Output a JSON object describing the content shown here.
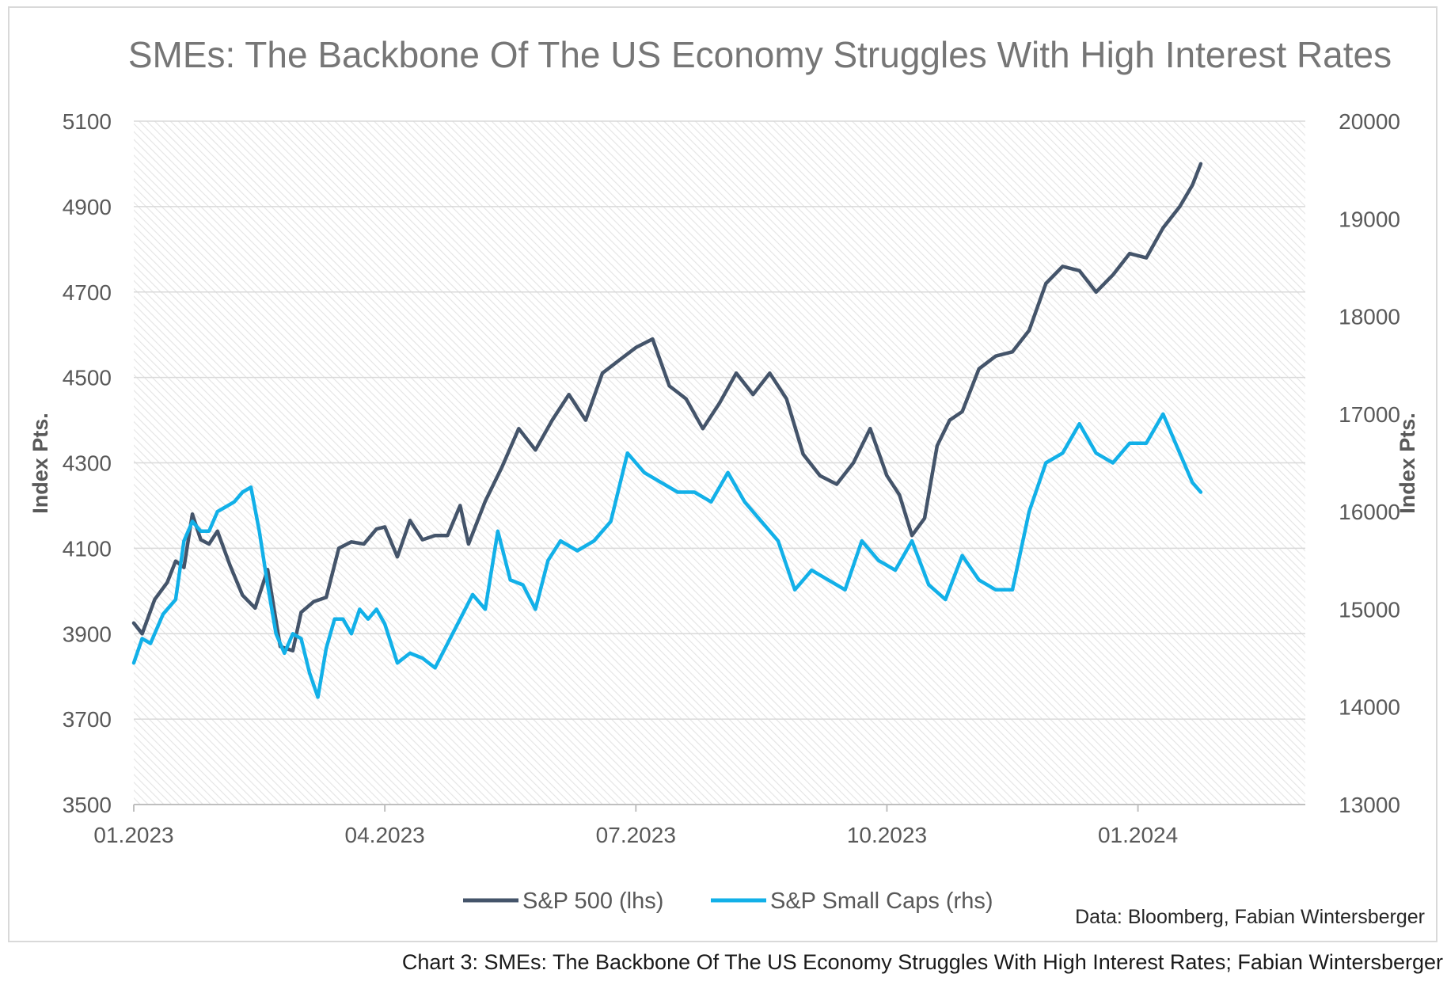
{
  "caption": "Chart 3: SMEs: The Backbone Of The US Economy Struggles With High Interest Rates; Fabian Wintersberger",
  "chart_data": {
    "type": "line",
    "title": "SMEs: The Backbone Of The US Economy Struggles With High Interest Rates",
    "ylabel_left": "Index Pts.",
    "ylabel_right": "Index Pts.",
    "source": "Data: Bloomberg, Fabian Wintersberger",
    "x_ticks": [
      "01.2023",
      "04.2023",
      "07.2023",
      "10.2023",
      "01.2024"
    ],
    "x_tick_months": [
      0,
      3,
      6,
      9,
      12
    ],
    "x_range_months": [
      0,
      14
    ],
    "y_left": {
      "min": 3500,
      "max": 5100,
      "ticks": [
        3500,
        3700,
        3900,
        4100,
        4300,
        4500,
        4700,
        4900,
        5100
      ]
    },
    "y_right": {
      "min": 13000,
      "max": 20000,
      "ticks": [
        13000,
        14000,
        15000,
        16000,
        17000,
        18000,
        19000,
        20000
      ]
    },
    "grid": true,
    "legend_position": "bottom",
    "series": [
      {
        "name": "S&P 500 (lhs)",
        "axis": "left",
        "color": "#44546a",
        "x": [
          0.0,
          0.1,
          0.25,
          0.4,
          0.5,
          0.6,
          0.7,
          0.8,
          0.9,
          1.0,
          1.15,
          1.3,
          1.45,
          1.6,
          1.75,
          1.9,
          2.0,
          2.15,
          2.3,
          2.45,
          2.6,
          2.75,
          2.9,
          3.0,
          3.15,
          3.3,
          3.45,
          3.6,
          3.75,
          3.9,
          4.0,
          4.2,
          4.4,
          4.6,
          4.8,
          5.0,
          5.2,
          5.4,
          5.6,
          5.8,
          6.0,
          6.2,
          6.4,
          6.6,
          6.8,
          7.0,
          7.2,
          7.4,
          7.6,
          7.8,
          8.0,
          8.2,
          8.4,
          8.6,
          8.8,
          9.0,
          9.15,
          9.3,
          9.45,
          9.6,
          9.75,
          9.9,
          10.1,
          10.3,
          10.5,
          10.7,
          10.9,
          11.1,
          11.3,
          11.5,
          11.7,
          11.9,
          12.1,
          12.3,
          12.5,
          12.65,
          12.75
        ],
        "values": [
          3925,
          3900,
          3980,
          4020,
          4070,
          4055,
          4180,
          4120,
          4110,
          4140,
          4060,
          3990,
          3960,
          4050,
          3870,
          3860,
          3950,
          3975,
          3985,
          4100,
          4115,
          4110,
          4145,
          4150,
          4080,
          4165,
          4120,
          4130,
          4130,
          4200,
          4110,
          4210,
          4290,
          4380,
          4330,
          4400,
          4460,
          4400,
          4510,
          4540,
          4570,
          4590,
          4480,
          4450,
          4380,
          4440,
          4510,
          4460,
          4510,
          4450,
          4320,
          4270,
          4250,
          4300,
          4380,
          4270,
          4225,
          4130,
          4170,
          4340,
          4400,
          4420,
          4520,
          4550,
          4560,
          4610,
          4720,
          4760,
          4750,
          4700,
          4740,
          4790,
          4780,
          4850,
          4900,
          4950,
          5000
        ]
      },
      {
        "name": "S&P Small Caps (rhs)",
        "axis": "right",
        "color": "#12b0e8",
        "x": [
          0.0,
          0.1,
          0.2,
          0.35,
          0.5,
          0.6,
          0.7,
          0.8,
          0.9,
          1.0,
          1.1,
          1.2,
          1.3,
          1.4,
          1.5,
          1.6,
          1.7,
          1.8,
          1.9,
          2.0,
          2.1,
          2.2,
          2.3,
          2.4,
          2.5,
          2.6,
          2.7,
          2.8,
          2.9,
          3.0,
          3.15,
          3.3,
          3.45,
          3.6,
          3.75,
          3.9,
          4.05,
          4.2,
          4.35,
          4.5,
          4.65,
          4.8,
          4.95,
          5.1,
          5.3,
          5.5,
          5.7,
          5.9,
          6.1,
          6.3,
          6.5,
          6.7,
          6.9,
          7.1,
          7.3,
          7.5,
          7.7,
          7.9,
          8.1,
          8.3,
          8.5,
          8.7,
          8.9,
          9.1,
          9.3,
          9.5,
          9.7,
          9.9,
          10.1,
          10.3,
          10.5,
          10.7,
          10.9,
          11.1,
          11.3,
          11.5,
          11.7,
          11.9,
          12.1,
          12.3,
          12.5,
          12.65,
          12.75
        ],
        "values": [
          14450,
          14700,
          14650,
          14950,
          15100,
          15700,
          15900,
          15800,
          15800,
          16000,
          16050,
          16100,
          16200,
          16250,
          15800,
          15250,
          14750,
          14550,
          14750,
          14700,
          14350,
          14100,
          14600,
          14900,
          14900,
          14750,
          15000,
          14900,
          15000,
          14850,
          14450,
          14550,
          14500,
          14400,
          14650,
          14900,
          15150,
          15000,
          15800,
          15300,
          15250,
          15000,
          15500,
          15700,
          15600,
          15700,
          15900,
          16600,
          16400,
          16300,
          16200,
          16200,
          16100,
          16400,
          16100,
          15900,
          15700,
          15200,
          15400,
          15300,
          15200,
          15700,
          15500,
          15400,
          15700,
          15250,
          15100,
          15550,
          15300,
          15200,
          15200,
          16000,
          16500,
          16600,
          16900,
          16600,
          16500,
          16700,
          16700,
          17000,
          16600,
          16300,
          16200
        ]
      }
    ]
  }
}
